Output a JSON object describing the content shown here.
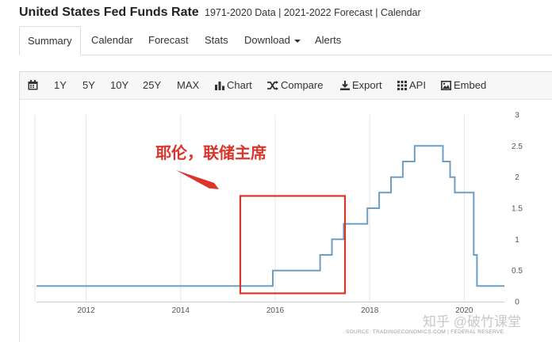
{
  "header": {
    "title": "United States Fed Funds Rate",
    "subtitle": "1971-2020 Data | 2021-2022 Forecast | Calendar"
  },
  "tabs": [
    {
      "label": "Summary",
      "active": true
    },
    {
      "label": "Calendar"
    },
    {
      "label": "Forecast"
    },
    {
      "label": "Stats"
    },
    {
      "label": "Download"
    },
    {
      "label": "Alerts"
    }
  ],
  "toolbar": {
    "ranges": [
      "1Y",
      "5Y",
      "10Y",
      "25Y",
      "MAX"
    ],
    "chart_label": "Chart",
    "compare_label": "Compare",
    "export_label": "Export",
    "api_label": "API",
    "embed_label": "Embed"
  },
  "annotation": {
    "text": "耶伦，联储主席",
    "color": "#d9352b"
  },
  "watermark": "知乎 @破竹课堂",
  "source": "SOURCE: TRADINGECONOMICS.COM  |  FEDERAL RESERVE",
  "colors": {
    "line": "#6d9fc5",
    "annotation": "#d9352b"
  },
  "chart_data": {
    "type": "line",
    "x_ticks": [
      "2012",
      "2014",
      "2016",
      "2018",
      "2020"
    ],
    "y_ticks": [
      "0",
      "0.5",
      "1",
      "1.5",
      "2",
      "2.5",
      "3"
    ],
    "ylim": [
      0,
      3
    ],
    "xlim": [
      2010.95,
      2020.85
    ],
    "grid": "vertical",
    "series": [
      {
        "points": [
          [
            2010.95,
            0.25
          ],
          [
            2015.95,
            0.25
          ],
          [
            2015.95,
            0.5
          ],
          [
            2016.95,
            0.5
          ],
          [
            2016.95,
            0.75
          ],
          [
            2017.2,
            0.75
          ],
          [
            2017.2,
            1.0
          ],
          [
            2017.45,
            1.0
          ],
          [
            2017.45,
            1.25
          ],
          [
            2017.95,
            1.25
          ],
          [
            2017.95,
            1.5
          ],
          [
            2018.2,
            1.5
          ],
          [
            2018.2,
            1.75
          ],
          [
            2018.45,
            1.75
          ],
          [
            2018.45,
            2.0
          ],
          [
            2018.7,
            2.0
          ],
          [
            2018.7,
            2.25
          ],
          [
            2018.95,
            2.25
          ],
          [
            2018.95,
            2.5
          ],
          [
            2019.55,
            2.5
          ],
          [
            2019.55,
            2.25
          ],
          [
            2019.7,
            2.25
          ],
          [
            2019.7,
            2.0
          ],
          [
            2019.8,
            2.0
          ],
          [
            2019.8,
            1.75
          ],
          [
            2020.2,
            1.75
          ],
          [
            2020.2,
            0.75
          ],
          [
            2020.27,
            0.75
          ],
          [
            2020.27,
            0.25
          ],
          [
            2020.85,
            0.25
          ]
        ]
      }
    ]
  }
}
